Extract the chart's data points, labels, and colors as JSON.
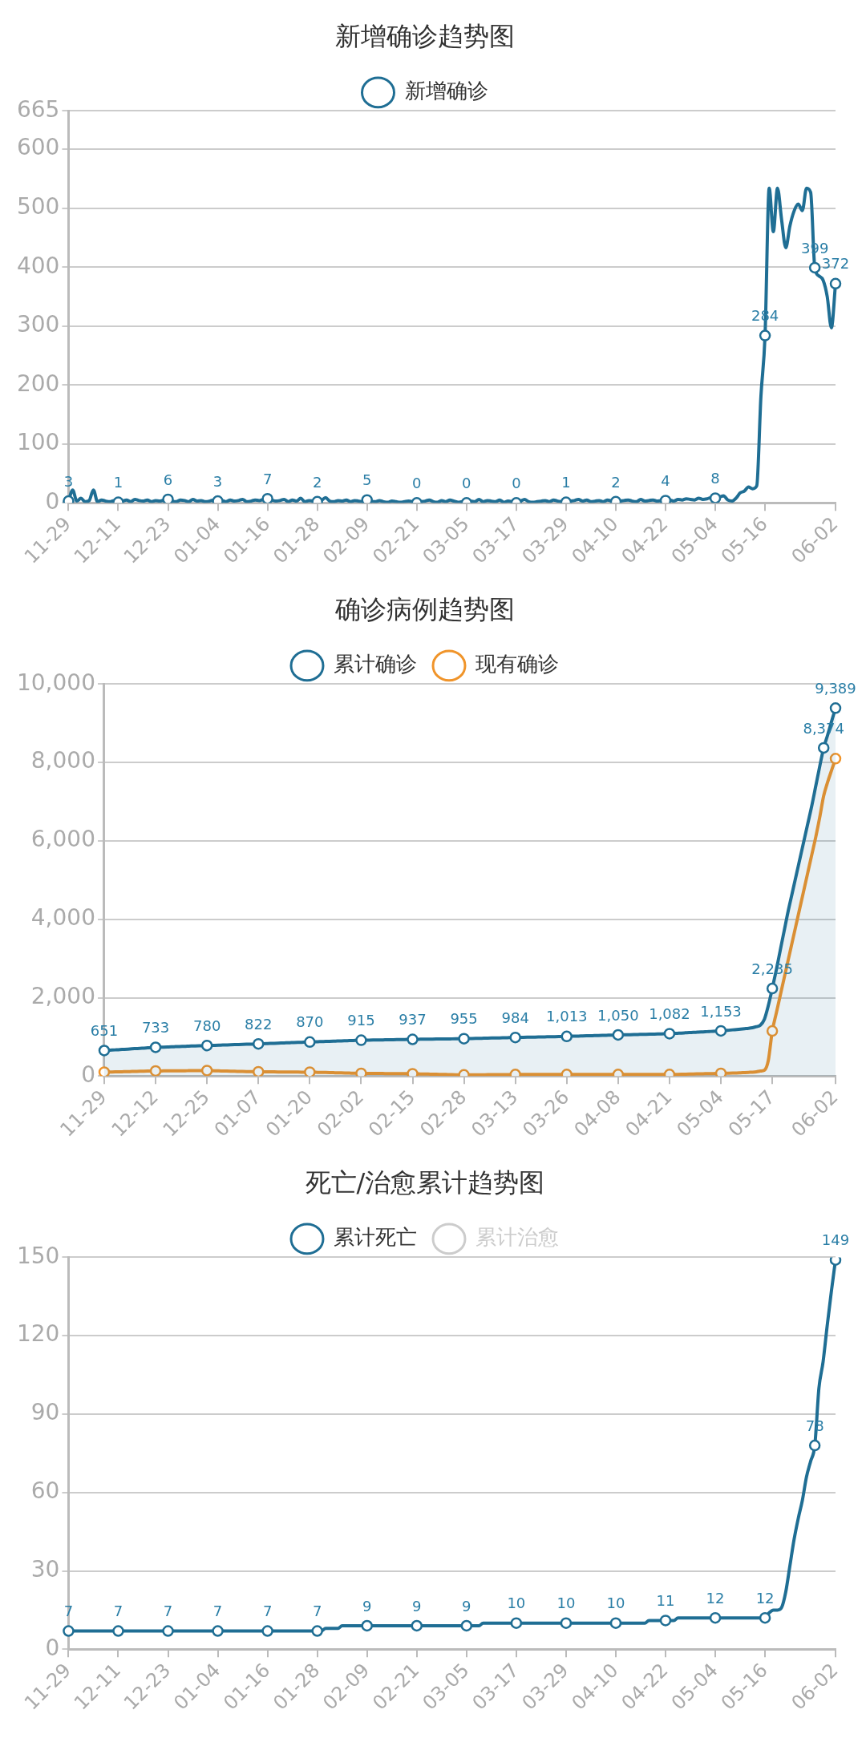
{
  "chart_data": [
    {
      "type": "line",
      "title": "新增确诊趋势图",
      "legend": "top",
      "grid": "y",
      "ylim": [
        0,
        665
      ],
      "yticks": [
        0,
        100,
        200,
        300,
        400,
        500,
        600,
        665
      ],
      "categories": [
        "11-29",
        null,
        null,
        null,
        null,
        null,
        null,
        null,
        null,
        null,
        null,
        null,
        "12-11",
        null,
        null,
        null,
        null,
        null,
        null,
        null,
        null,
        null,
        null,
        null,
        "12-23",
        null,
        null,
        null,
        null,
        null,
        null,
        null,
        null,
        null,
        null,
        null,
        "01-04",
        null,
        null,
        null,
        null,
        null,
        null,
        null,
        null,
        null,
        null,
        null,
        "01-16",
        null,
        null,
        null,
        null,
        null,
        null,
        null,
        null,
        null,
        null,
        null,
        "01-28",
        null,
        null,
        null,
        null,
        null,
        null,
        null,
        null,
        null,
        null,
        null,
        "02-09",
        null,
        null,
        null,
        null,
        null,
        null,
        null,
        null,
        null,
        null,
        null,
        "02-21",
        null,
        null,
        null,
        null,
        null,
        null,
        null,
        null,
        null,
        null,
        null,
        "03-05",
        null,
        null,
        null,
        null,
        null,
        null,
        null,
        null,
        null,
        null,
        null,
        "03-17",
        null,
        null,
        null,
        null,
        null,
        null,
        null,
        null,
        null,
        null,
        null,
        "03-29",
        null,
        null,
        null,
        null,
        null,
        null,
        null,
        null,
        null,
        null,
        null,
        "04-10",
        null,
        null,
        null,
        null,
        null,
        null,
        null,
        null,
        null,
        null,
        null,
        "04-22",
        null,
        null,
        null,
        null,
        null,
        null,
        null,
        null,
        null,
        null,
        null,
        "05-04",
        null,
        null,
        null,
        null,
        null,
        null,
        null,
        null,
        null,
        null,
        null,
        "05-16",
        null,
        null,
        null,
        null,
        null,
        null,
        null,
        null,
        null,
        null,
        null,
        null,
        null,
        null,
        null,
        null,
        "06-02"
      ],
      "series": [
        {
          "name": "新增确诊",
          "color": "#1f6e94",
          "values": [
            3,
            22,
            3,
            8,
            2,
            4,
            22,
            2,
            5,
            3,
            2,
            4,
            1,
            3,
            5,
            2,
            6,
            4,
            3,
            5,
            2,
            4,
            3,
            5,
            6,
            3,
            2,
            5,
            4,
            2,
            6,
            3,
            4,
            2,
            3,
            5,
            3,
            4,
            2,
            5,
            3,
            4,
            6,
            2,
            3,
            5,
            4,
            6,
            7,
            5,
            3,
            4,
            6,
            2,
            5,
            3,
            8,
            2,
            4,
            3,
            2,
            4,
            9,
            3,
            2,
            4,
            3,
            5,
            2,
            4,
            3,
            2,
            5,
            3,
            2,
            4,
            2,
            1,
            3,
            2,
            1,
            2,
            3,
            2,
            0,
            2,
            3,
            5,
            2,
            1,
            4,
            2,
            5,
            3,
            1,
            2,
            0,
            3,
            2,
            6,
            2,
            4,
            3,
            2,
            5,
            1,
            3,
            2,
            0,
            3,
            6,
            2,
            1,
            2,
            3,
            4,
            2,
            5,
            3,
            2,
            1,
            3,
            4,
            6,
            3,
            5,
            2,
            3,
            4,
            2,
            5,
            3,
            2,
            3,
            4,
            5,
            3,
            2,
            6,
            3,
            4,
            5,
            3,
            4,
            4,
            5,
            3,
            6,
            5,
            7,
            6,
            5,
            8,
            6,
            7,
            9,
            8,
            10,
            12,
            5,
            3,
            8,
            17,
            20,
            27,
            24,
            29,
            180,
            284,
            534,
            460,
            534,
            480,
            433,
            470,
            495,
            507,
            496,
            534,
            527,
            399,
            385,
            378,
            350,
            297,
            372
          ],
          "value_labels": [
            "3",
            null,
            null,
            null,
            null,
            null,
            null,
            null,
            null,
            null,
            null,
            null,
            "1",
            null,
            null,
            null,
            null,
            null,
            null,
            null,
            null,
            null,
            null,
            null,
            "6",
            null,
            null,
            null,
            null,
            null,
            null,
            null,
            null,
            null,
            null,
            null,
            "3",
            null,
            null,
            null,
            null,
            null,
            null,
            null,
            null,
            null,
            null,
            null,
            "7",
            null,
            null,
            null,
            null,
            null,
            null,
            null,
            null,
            null,
            null,
            null,
            "2",
            null,
            null,
            null,
            null,
            null,
            null,
            null,
            null,
            null,
            null,
            null,
            "5",
            null,
            null,
            null,
            null,
            null,
            null,
            null,
            null,
            null,
            null,
            null,
            "0",
            null,
            null,
            null,
            null,
            null,
            null,
            null,
            null,
            null,
            null,
            null,
            "0",
            null,
            null,
            null,
            null,
            null,
            null,
            null,
            null,
            null,
            null,
            null,
            "0",
            null,
            null,
            null,
            null,
            null,
            null,
            null,
            null,
            null,
            null,
            null,
            "1",
            null,
            null,
            null,
            null,
            null,
            null,
            null,
            null,
            null,
            null,
            null,
            "2",
            null,
            null,
            null,
            null,
            null,
            null,
            null,
            null,
            null,
            null,
            null,
            "4",
            null,
            null,
            null,
            null,
            null,
            null,
            null,
            null,
            null,
            null,
            null,
            "8",
            null,
            null,
            null,
            null,
            null,
            null,
            null,
            null,
            null,
            null,
            null,
            "284",
            null,
            null,
            null,
            null,
            null,
            null,
            null,
            null,
            null,
            null,
            null,
            "399",
            null,
            null,
            null,
            null,
            "372"
          ]
        }
      ]
    },
    {
      "type": "line",
      "title": "确诊病例趋势图",
      "legend": "top",
      "grid": "y",
      "ylim": [
        0,
        10000
      ],
      "yticks": [
        0,
        {
          "value": 2000,
          "label": "2,000"
        },
        {
          "value": 4000,
          "label": "4,000"
        },
        {
          "value": 6000,
          "label": "6,000"
        },
        {
          "value": 8000,
          "label": "8,000"
        },
        {
          "value": 10000,
          "label": "10,000"
        }
      ],
      "categories": [
        "11-29",
        null,
        null,
        null,
        null,
        null,
        null,
        null,
        null,
        null,
        null,
        null,
        null,
        "12-12",
        null,
        null,
        null,
        null,
        null,
        null,
        null,
        null,
        null,
        null,
        null,
        null,
        "12-25",
        null,
        null,
        null,
        null,
        null,
        null,
        null,
        null,
        null,
        null,
        null,
        null,
        "01-07",
        null,
        null,
        null,
        null,
        null,
        null,
        null,
        null,
        null,
        null,
        null,
        null,
        "01-20",
        null,
        null,
        null,
        null,
        null,
        null,
        null,
        null,
        null,
        null,
        null,
        null,
        "02-02",
        null,
        null,
        null,
        null,
        null,
        null,
        null,
        null,
        null,
        null,
        null,
        null,
        "02-15",
        null,
        null,
        null,
        null,
        null,
        null,
        null,
        null,
        null,
        null,
        null,
        null,
        "02-28",
        null,
        null,
        null,
        null,
        null,
        null,
        null,
        null,
        null,
        null,
        null,
        null,
        "03-13",
        null,
        null,
        null,
        null,
        null,
        null,
        null,
        null,
        null,
        null,
        null,
        null,
        "03-26",
        null,
        null,
        null,
        null,
        null,
        null,
        null,
        null,
        null,
        null,
        null,
        null,
        "04-08",
        null,
        null,
        null,
        null,
        null,
        null,
        null,
        null,
        null,
        null,
        null,
        null,
        "04-21",
        null,
        null,
        null,
        null,
        null,
        null,
        null,
        null,
        null,
        null,
        null,
        null,
        "05-04",
        null,
        null,
        null,
        null,
        null,
        null,
        null,
        null,
        null,
        null,
        null,
        null,
        "05-17",
        null,
        null,
        null,
        null,
        null,
        null,
        null,
        null,
        null,
        null,
        null,
        null,
        null,
        null,
        null,
        "06-02"
      ],
      "series": [
        {
          "name": "累计确诊",
          "type": "area",
          "color": "#1f6e94",
          "values": [
            651,
            657,
            664,
            670,
            676,
            683,
            689,
            695,
            702,
            708,
            714,
            720,
            727,
            733,
            737,
            740,
            744,
            747,
            751,
            755,
            758,
            762,
            766,
            769,
            773,
            776,
            780,
            783,
            786,
            790,
            793,
            796,
            799,
            803,
            806,
            809,
            812,
            815,
            819,
            822,
            826,
            830,
            833,
            837,
            841,
            844,
            848,
            852,
            855,
            859,
            863,
            866,
            870,
            873,
            877,
            880,
            884,
            887,
            891,
            894,
            898,
            901,
            905,
            908,
            912,
            915,
            917,
            918,
            920,
            922,
            923,
            925,
            927,
            929,
            930,
            932,
            934,
            935,
            937,
            938,
            940,
            941,
            942,
            944,
            945,
            946,
            948,
            949,
            950,
            952,
            953,
            955,
            957,
            959,
            962,
            964,
            966,
            968,
            971,
            973,
            975,
            977,
            980,
            982,
            984,
            986,
            988,
            991,
            993,
            995,
            997,
            1000,
            1002,
            1004,
            1006,
            1009,
            1011,
            1013,
            1016,
            1019,
            1021,
            1024,
            1027,
            1030,
            1033,
            1036,
            1039,
            1041,
            1044,
            1047,
            1050,
            1052,
            1055,
            1057,
            1060,
            1062,
            1065,
            1067,
            1069,
            1072,
            1074,
            1077,
            1079,
            1082,
            1087,
            1093,
            1098,
            1104,
            1109,
            1115,
            1120,
            1126,
            1131,
            1137,
            1142,
            1148,
            1153,
            1160,
            1170,
            1180,
            1190,
            1200,
            1210,
            1220,
            1235,
            1260,
            1300,
            1450,
            1800,
            2235,
            2700,
            3200,
            3700,
            4200,
            4650,
            5100,
            5550,
            6000,
            6450,
            6900,
            7400,
            7900,
            8374,
            8700,
            9050,
            9389
          ],
          "value_labels": [
            "651",
            null,
            null,
            null,
            null,
            null,
            null,
            null,
            null,
            null,
            null,
            null,
            null,
            "733",
            null,
            null,
            null,
            null,
            null,
            null,
            null,
            null,
            null,
            null,
            null,
            null,
            "780",
            null,
            null,
            null,
            null,
            null,
            null,
            null,
            null,
            null,
            null,
            null,
            null,
            "822",
            null,
            null,
            null,
            null,
            null,
            null,
            null,
            null,
            null,
            null,
            null,
            null,
            "870",
            null,
            null,
            null,
            null,
            null,
            null,
            null,
            null,
            null,
            null,
            null,
            null,
            "915",
            null,
            null,
            null,
            null,
            null,
            null,
            null,
            null,
            null,
            null,
            null,
            null,
            "937",
            null,
            null,
            null,
            null,
            null,
            null,
            null,
            null,
            null,
            null,
            null,
            null,
            "955",
            null,
            null,
            null,
            null,
            null,
            null,
            null,
            null,
            null,
            null,
            null,
            null,
            "984",
            null,
            null,
            null,
            null,
            null,
            null,
            null,
            null,
            null,
            null,
            null,
            null,
            "1,013",
            null,
            null,
            null,
            null,
            null,
            null,
            null,
            null,
            null,
            null,
            null,
            null,
            "1,050",
            null,
            null,
            null,
            null,
            null,
            null,
            null,
            null,
            null,
            null,
            null,
            null,
            "1,082",
            null,
            null,
            null,
            null,
            null,
            null,
            null,
            null,
            null,
            null,
            null,
            null,
            "1,153",
            null,
            null,
            null,
            null,
            null,
            null,
            null,
            null,
            null,
            null,
            null,
            null,
            "2,235",
            null,
            null,
            null,
            null,
            null,
            null,
            null,
            null,
            null,
            null,
            null,
            null,
            "8,374",
            null,
            null,
            "9,389"
          ]
        },
        {
          "name": "现有确诊",
          "color": "#f0942a",
          "values": [
            100,
            102,
            105,
            107,
            110,
            112,
            115,
            117,
            120,
            122,
            125,
            127,
            128,
            130,
            131,
            132,
            133,
            134,
            135,
            135,
            136,
            137,
            138,
            138,
            139,
            139,
            140,
            138,
            135,
            133,
            130,
            128,
            125,
            122,
            120,
            118,
            115,
            113,
            111,
            110,
            109,
            108,
            108,
            107,
            106,
            105,
            104,
            104,
            103,
            102,
            101,
            100,
            100,
            98,
            95,
            93,
            91,
            88,
            86,
            84,
            81,
            79,
            77,
            74,
            72,
            70,
            69,
            68,
            68,
            67,
            66,
            65,
            64,
            64,
            63,
            62,
            61,
            60,
            60,
            58,
            55,
            53,
            51,
            48,
            46,
            44,
            41,
            39,
            37,
            34,
            32,
            30,
            31,
            32,
            32,
            33,
            34,
            35,
            35,
            36,
            37,
            38,
            39,
            39,
            40,
            40,
            40,
            40,
            40,
            40,
            40,
            40,
            40,
            40,
            40,
            40,
            40,
            40,
            40,
            40,
            40,
            40,
            40,
            40,
            40,
            40,
            40,
            40,
            40,
            40,
            40,
            40,
            40,
            40,
            40,
            40,
            40,
            40,
            40,
            40,
            40,
            40,
            40,
            40,
            42,
            44,
            47,
            49,
            51,
            54,
            56,
            58,
            61,
            63,
            65,
            68,
            70,
            72,
            75,
            78,
            80,
            85,
            90,
            95,
            100,
            110,
            130,
            150,
            400,
            1150,
            1600,
            2050,
            2500,
            2950,
            3400,
            3850,
            4300,
            4750,
            5200,
            5650,
            6100,
            6600,
            7150,
            7500,
            7800,
            8100
          ]
        }
      ]
    },
    {
      "type": "line",
      "title": "死亡/治愈累计趋势图",
      "legend": "top",
      "grid": "y",
      "ylim": [
        0,
        150
      ],
      "yticks": [
        0,
        30,
        60,
        90,
        120,
        150
      ],
      "categories": [
        "11-29",
        null,
        null,
        null,
        null,
        null,
        null,
        null,
        null,
        null,
        null,
        null,
        "12-11",
        null,
        null,
        null,
        null,
        null,
        null,
        null,
        null,
        null,
        null,
        null,
        "12-23",
        null,
        null,
        null,
        null,
        null,
        null,
        null,
        null,
        null,
        null,
        null,
        "01-04",
        null,
        null,
        null,
        null,
        null,
        null,
        null,
        null,
        null,
        null,
        null,
        "01-16",
        null,
        null,
        null,
        null,
        null,
        null,
        null,
        null,
        null,
        null,
        null,
        "01-28",
        null,
        null,
        null,
        null,
        null,
        null,
        null,
        null,
        null,
        null,
        null,
        "02-09",
        null,
        null,
        null,
        null,
        null,
        null,
        null,
        null,
        null,
        null,
        null,
        "02-21",
        null,
        null,
        null,
        null,
        null,
        null,
        null,
        null,
        null,
        null,
        null,
        "03-05",
        null,
        null,
        null,
        null,
        null,
        null,
        null,
        null,
        null,
        null,
        null,
        "03-17",
        null,
        null,
        null,
        null,
        null,
        null,
        null,
        null,
        null,
        null,
        null,
        "03-29",
        null,
        null,
        null,
        null,
        null,
        null,
        null,
        null,
        null,
        null,
        null,
        "04-10",
        null,
        null,
        null,
        null,
        null,
        null,
        null,
        null,
        null,
        null,
        null,
        "04-22",
        null,
        null,
        null,
        null,
        null,
        null,
        null,
        null,
        null,
        null,
        null,
        "05-04",
        null,
        null,
        null,
        null,
        null,
        null,
        null,
        null,
        null,
        null,
        null,
        "05-16",
        null,
        null,
        null,
        null,
        null,
        null,
        null,
        null,
        null,
        null,
        null,
        null,
        null,
        null,
        null,
        null,
        "06-02"
      ],
      "series": [
        {
          "name": "累计死亡",
          "color": "#1f6e94",
          "values": [
            7,
            7,
            7,
            7,
            7,
            7,
            7,
            7,
            7,
            7,
            7,
            7,
            7,
            7,
            7,
            7,
            7,
            7,
            7,
            7,
            7,
            7,
            7,
            7,
            7,
            7,
            7,
            7,
            7,
            7,
            7,
            7,
            7,
            7,
            7,
            7,
            7,
            7,
            7,
            7,
            7,
            7,
            7,
            7,
            7,
            7,
            7,
            7,
            7,
            7,
            7,
            7,
            7,
            7,
            7,
            7,
            7,
            7,
            7,
            7,
            7,
            7,
            8,
            8,
            8,
            8,
            9,
            9,
            9,
            9,
            9,
            9,
            9,
            9,
            9,
            9,
            9,
            9,
            9,
            9,
            9,
            9,
            9,
            9,
            9,
            9,
            9,
            9,
            9,
            9,
            9,
            9,
            9,
            9,
            9,
            9,
            9,
            9,
            9,
            9,
            10,
            10,
            10,
            10,
            10,
            10,
            10,
            10,
            10,
            10,
            10,
            10,
            10,
            10,
            10,
            10,
            10,
            10,
            10,
            10,
            10,
            10,
            10,
            10,
            10,
            10,
            10,
            10,
            10,
            10,
            10,
            10,
            10,
            10,
            10,
            10,
            10,
            10,
            10,
            10,
            11,
            11,
            11,
            11,
            11,
            11,
            11,
            12,
            12,
            12,
            12,
            12,
            12,
            12,
            12,
            12,
            12,
            12,
            12,
            12,
            12,
            12,
            12,
            12,
            12,
            12,
            12,
            12,
            12,
            14,
            15,
            15,
            16,
            22,
            32,
            42,
            50,
            57,
            66,
            72,
            78,
            100,
            110,
            124,
            137,
            149
          ],
          "value_labels": [
            "7",
            null,
            null,
            null,
            null,
            null,
            null,
            null,
            null,
            null,
            null,
            null,
            "7",
            null,
            null,
            null,
            null,
            null,
            null,
            null,
            null,
            null,
            null,
            null,
            "7",
            null,
            null,
            null,
            null,
            null,
            null,
            null,
            null,
            null,
            null,
            null,
            "7",
            null,
            null,
            null,
            null,
            null,
            null,
            null,
            null,
            null,
            null,
            null,
            "7",
            null,
            null,
            null,
            null,
            null,
            null,
            null,
            null,
            null,
            null,
            null,
            "7",
            null,
            null,
            null,
            null,
            null,
            null,
            null,
            null,
            null,
            null,
            null,
            "9",
            null,
            null,
            null,
            null,
            null,
            null,
            null,
            null,
            null,
            null,
            null,
            "9",
            null,
            null,
            null,
            null,
            null,
            null,
            null,
            null,
            null,
            null,
            null,
            "9",
            null,
            null,
            null,
            null,
            null,
            null,
            null,
            null,
            null,
            null,
            null,
            "10",
            null,
            null,
            null,
            null,
            null,
            null,
            null,
            null,
            null,
            null,
            null,
            "10",
            null,
            null,
            null,
            null,
            null,
            null,
            null,
            null,
            null,
            null,
            null,
            "10",
            null,
            null,
            null,
            null,
            null,
            null,
            null,
            null,
            null,
            null,
            null,
            "11",
            null,
            null,
            null,
            null,
            null,
            null,
            null,
            null,
            null,
            null,
            null,
            "12",
            null,
            null,
            null,
            null,
            null,
            null,
            null,
            null,
            null,
            null,
            null,
            "12",
            null,
            null,
            null,
            null,
            null,
            null,
            null,
            null,
            null,
            null,
            null,
            "78",
            null,
            null,
            null,
            null,
            "149"
          ]
        },
        {
          "name": "累计治愈",
          "color": "#cccccc",
          "values": [
            null,
            null,
            null,
            null,
            null,
            null,
            null,
            null,
            null,
            null,
            null,
            null,
            null,
            null,
            null,
            null,
            null,
            null,
            null,
            null,
            null,
            null,
            null,
            null,
            null,
            null,
            null,
            null,
            null,
            null,
            null,
            null,
            null,
            null,
            null,
            null,
            null,
            null,
            null,
            null,
            null,
            null,
            null,
            null,
            null,
            null,
            null,
            null,
            null,
            null,
            null,
            null,
            null,
            null,
            null,
            null,
            null,
            null,
            null,
            null,
            null,
            null,
            null,
            null,
            null,
            null,
            null,
            null,
            null,
            null,
            null,
            null,
            null,
            null,
            null,
            null,
            null,
            null,
            null,
            null,
            null,
            null,
            null,
            null,
            null,
            null,
            null,
            null,
            null,
            null,
            null,
            null,
            null,
            null,
            null,
            null,
            null,
            null,
            null,
            null,
            null,
            null,
            null,
            null,
            null,
            null,
            null,
            null,
            null,
            null,
            null,
            null,
            null,
            null,
            null,
            null,
            null,
            null,
            null,
            null,
            null,
            null,
            null,
            null,
            null,
            null,
            null,
            null,
            null,
            null,
            null,
            null,
            null,
            null,
            null,
            null,
            null,
            null,
            null,
            null,
            null,
            null,
            null,
            null,
            null,
            null,
            null,
            null,
            null,
            null,
            null,
            null,
            null,
            null,
            null,
            null,
            null,
            null,
            null,
            null,
            null,
            null,
            null,
            null,
            null,
            null,
            null,
            null,
            null,
            null,
            null,
            null,
            null,
            null,
            null,
            null,
            null,
            null,
            null,
            null,
            null,
            null,
            null,
            null,
            null,
            null
          ]
        }
      ]
    }
  ]
}
